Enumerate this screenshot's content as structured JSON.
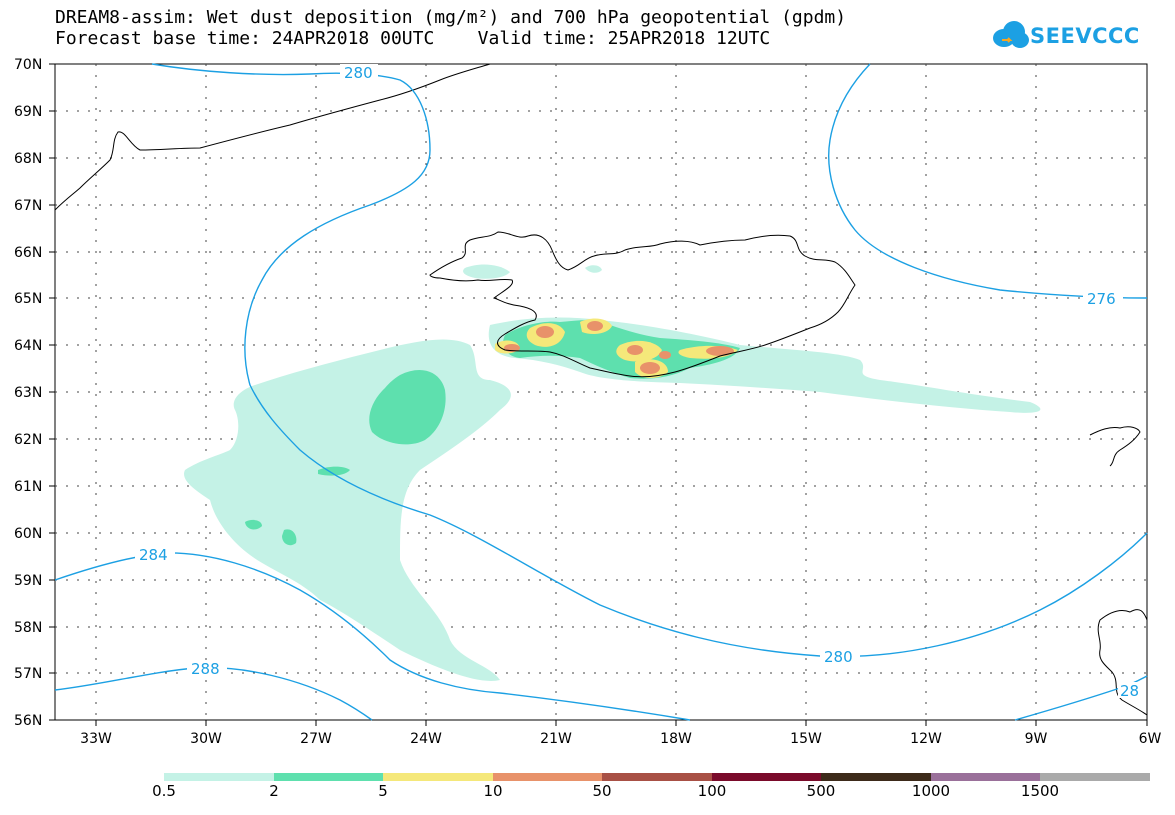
{
  "title_line1": "DREAM8-assim: Wet dust deposition (mg/m²) and 700 hPa geopotential (gpdm)",
  "title_line2": "Forecast base time: 24APR2018 00UTC    Valid time: 25APR2018 12UTC",
  "logo_text": "SEEVCCC",
  "lat_labels": [
    "70N",
    "69N",
    "68N",
    "67N",
    "66N",
    "65N",
    "64N",
    "63N",
    "62N",
    "61N",
    "60N",
    "59N",
    "58N",
    "57N",
    "56N"
  ],
  "lon_labels": [
    "33W",
    "30W",
    "27W",
    "24W",
    "21W",
    "18W",
    "15W",
    "12W",
    "9W",
    "6W"
  ],
  "contour_labels": [
    "280",
    "276",
    "284",
    "288",
    "280",
    "28"
  ],
  "colorbar": {
    "labels": [
      "0.5",
      "2",
      "5",
      "10",
      "50",
      "100",
      "500",
      "1000",
      "1500"
    ],
    "colors": [
      "#c4f2e6",
      "#5ee0ae",
      "#f5e87a",
      "#e8926a",
      "#a85045",
      "#7a0a2a",
      "#3d2a1a",
      "#9a709a",
      "#aaaaaa"
    ]
  },
  "colors": {
    "contour": "#1ca0e3",
    "dust_low": "#c4f2e6",
    "dust_mid": "#5ee0ae",
    "dust_5": "#f5e87a",
    "dust_10": "#e8926a",
    "coast": "#000000"
  }
}
